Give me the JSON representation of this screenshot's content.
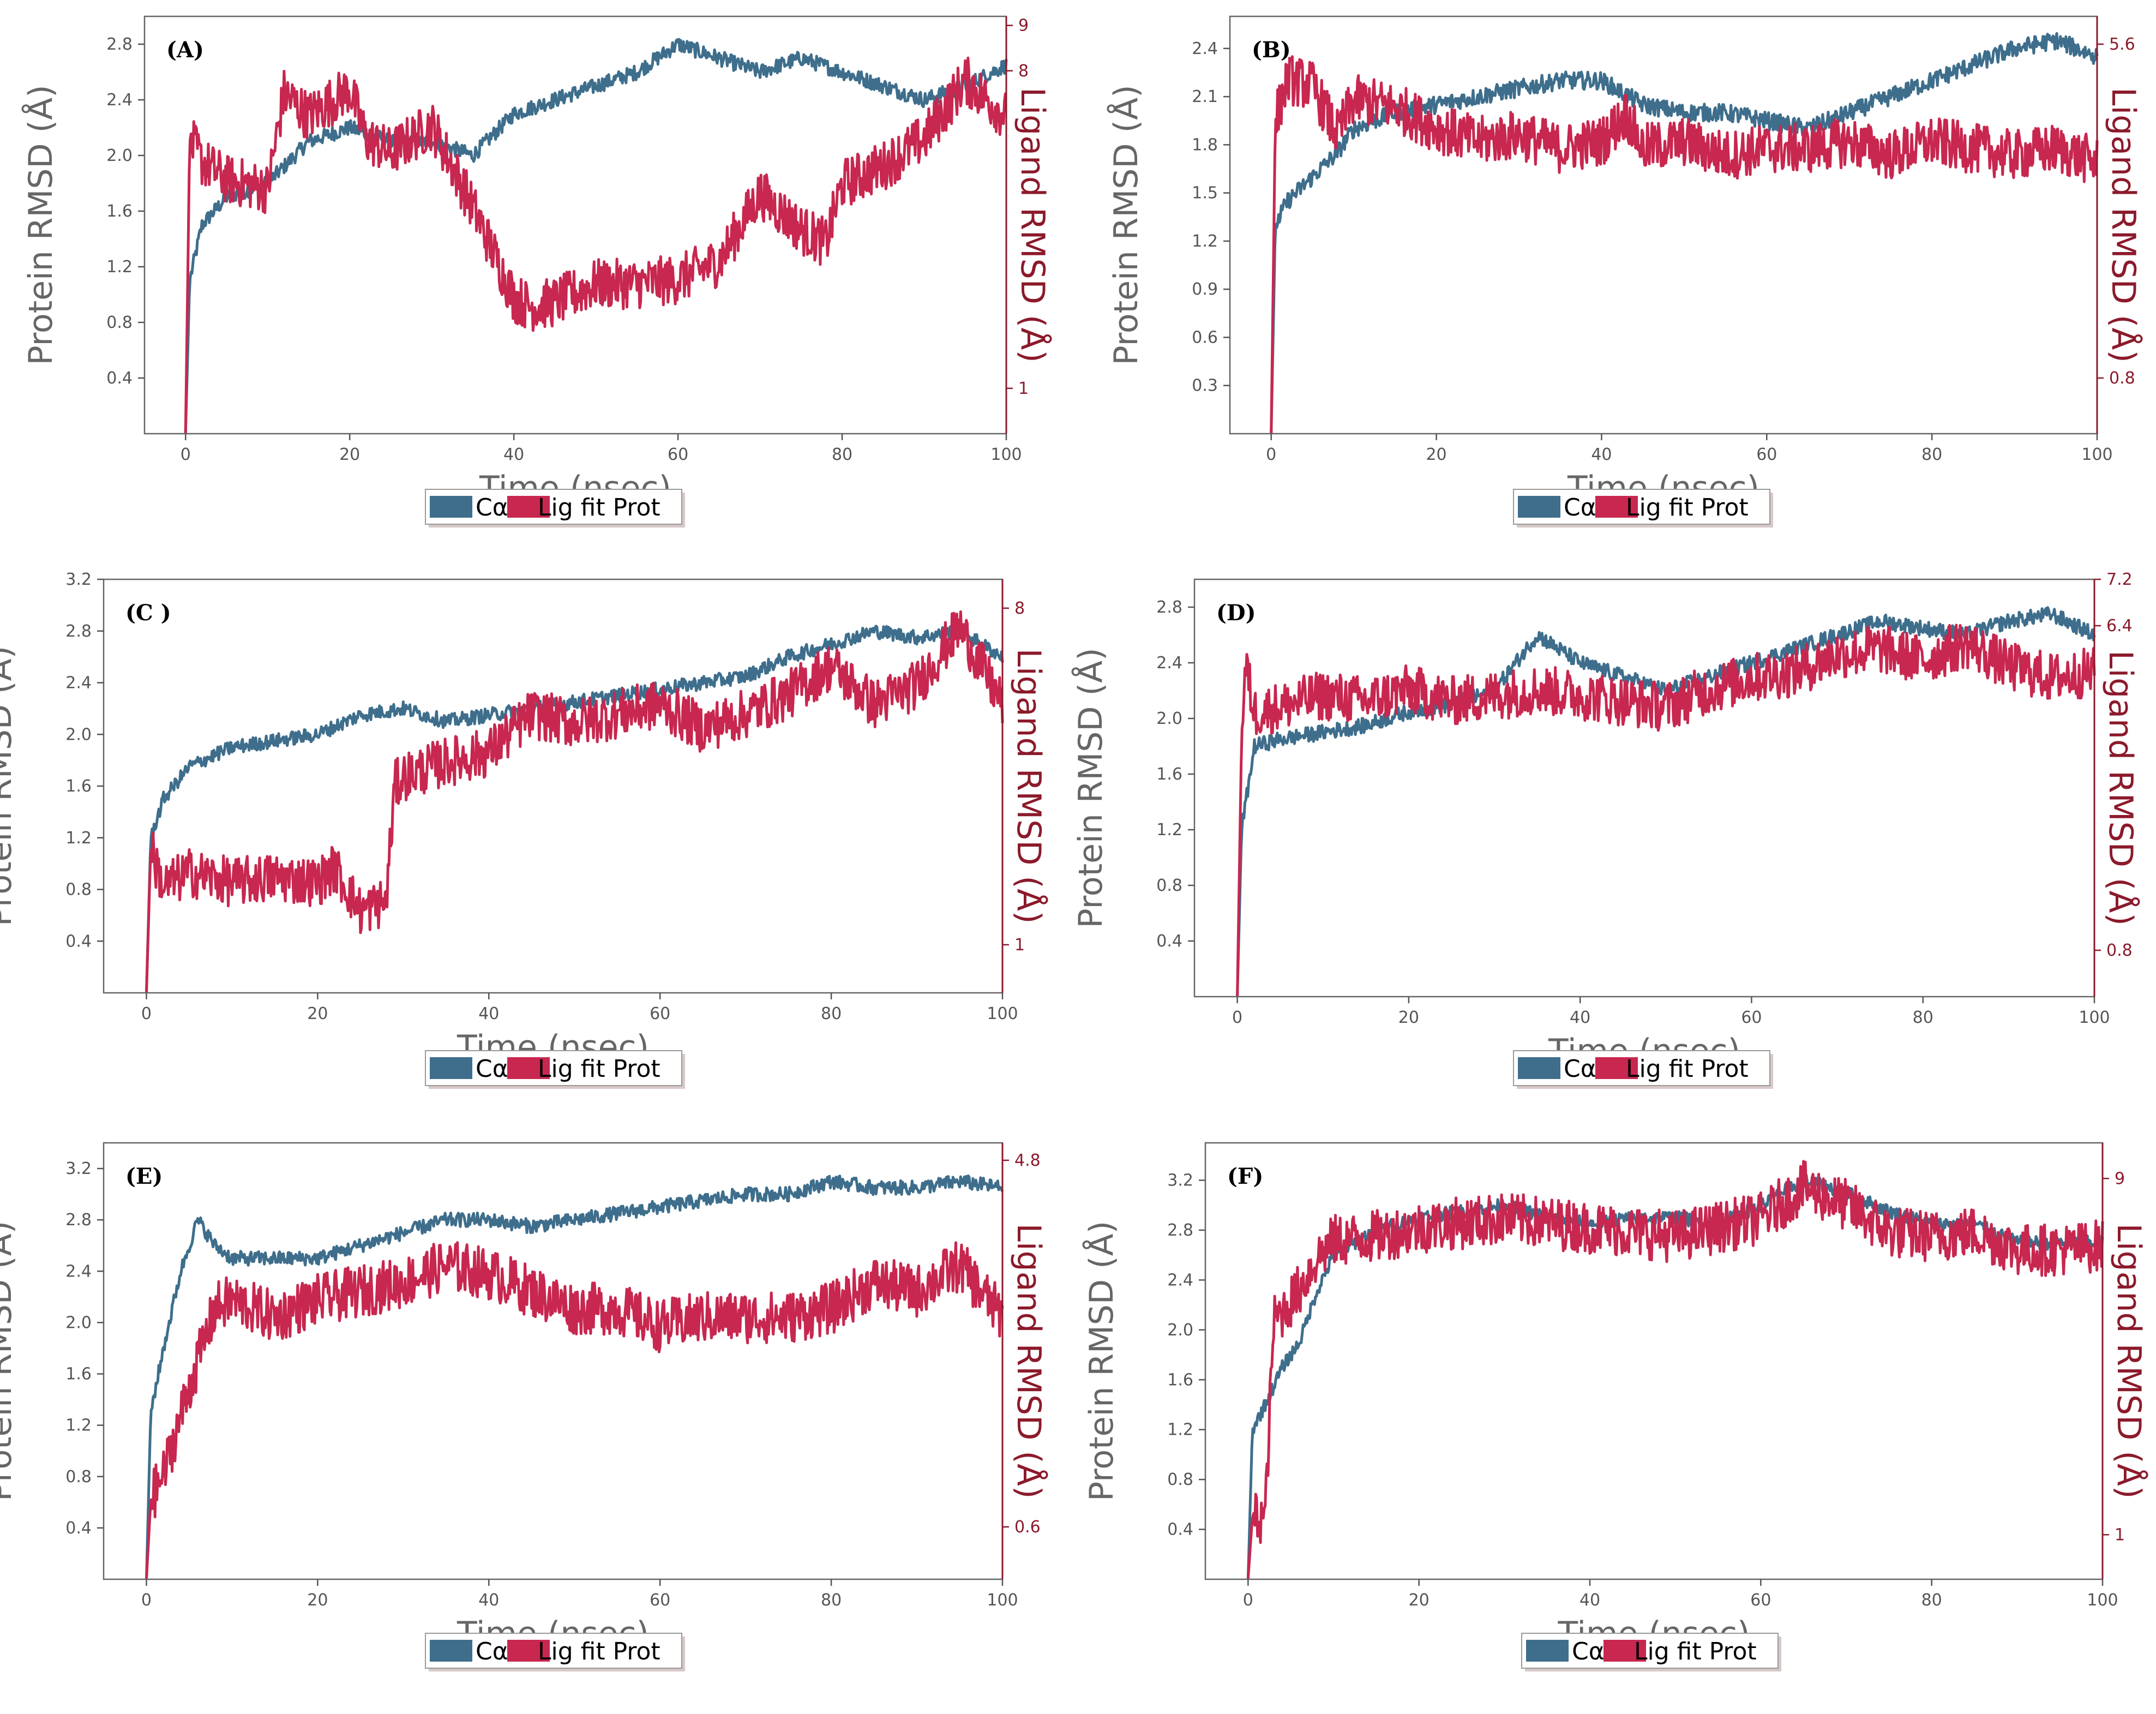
{
  "colors": {
    "protein": "#3e6e8c",
    "ligand": "#c8274f",
    "right_axis": "#8b1a2b",
    "axis": "#555555"
  },
  "chart_data": [
    {
      "type": "line",
      "panel": "(A)",
      "xlabel": "Time (nsec)",
      "ylabel": "Protein RMSD (Å)",
      "ylabel_right": "Ligand RMSD (Å)",
      "xlim": [
        -5,
        100
      ],
      "ylim": [
        0,
        3.0
      ],
      "ylim_right": [
        0,
        9.2
      ],
      "xticks": [
        0,
        20,
        40,
        60,
        80,
        100
      ],
      "yticks": [
        "0.4",
        "0.8",
        "1.2",
        "1.6",
        "2.0",
        "2.4",
        "2.8"
      ],
      "yticks_right": [
        "1",
        "8",
        "9"
      ],
      "legend": [
        "Cα",
        "Lig fit Prot"
      ],
      "series": [
        {
          "name": "Cα",
          "axis": "left",
          "x": [
            0,
            0.5,
            2,
            5,
            10,
            15,
            20,
            25,
            30,
            35,
            40,
            45,
            50,
            55,
            60,
            65,
            70,
            75,
            80,
            85,
            90,
            95,
            100
          ],
          "y": [
            0.0,
            1.1,
            1.5,
            1.7,
            1.8,
            2.1,
            2.2,
            2.1,
            2.1,
            2.0,
            2.3,
            2.4,
            2.5,
            2.6,
            2.8,
            2.7,
            2.6,
            2.7,
            2.6,
            2.5,
            2.4,
            2.5,
            2.65
          ]
        },
        {
          "name": "Lig fit Prot",
          "axis": "right",
          "x": [
            0,
            0.5,
            2,
            5,
            10,
            12,
            15,
            20,
            22,
            25,
            30,
            35,
            40,
            42,
            45,
            50,
            55,
            60,
            65,
            70,
            75,
            78,
            80,
            85,
            90,
            95,
            100
          ],
          "y": [
            0.0,
            6.5,
            6.0,
            5.6,
            5.4,
            7.5,
            7.0,
            7.6,
            6.5,
            6.2,
            6.8,
            5.0,
            3.0,
            2.8,
            2.9,
            3.3,
            3.3,
            3.4,
            3.8,
            5.3,
            4.5,
            4.2,
            5.5,
            5.9,
            6.5,
            7.8,
            7.0
          ]
        }
      ]
    },
    {
      "type": "line",
      "panel": "(B)",
      "xlabel": "Time (nsec)",
      "ylabel": "Protein RMSD (Å)",
      "ylabel_right": "Ligand RMSD (Å)",
      "xlim": [
        -5,
        100
      ],
      "ylim": [
        0,
        2.6
      ],
      "ylim_right": [
        0,
        6.0
      ],
      "xticks": [
        0,
        20,
        40,
        60,
        80,
        100
      ],
      "yticks": [
        "0.3",
        "0.6",
        "0.9",
        "1.2",
        "1.5",
        "1.8",
        "2.1",
        "2.4"
      ],
      "yticks_right": [
        "0.8",
        "5.6"
      ],
      "legend": [
        "Cα",
        "Lig fit Prot"
      ],
      "series": [
        {
          "name": "Cα",
          "axis": "left",
          "x": [
            0,
            0.5,
            2,
            5,
            8,
            10,
            15,
            20,
            25,
            30,
            35,
            40,
            45,
            50,
            55,
            60,
            65,
            70,
            75,
            80,
            85,
            90,
            95,
            100
          ],
          "y": [
            0.0,
            1.3,
            1.45,
            1.6,
            1.75,
            1.9,
            2.0,
            2.05,
            2.1,
            2.15,
            2.2,
            2.2,
            2.05,
            2.0,
            2.0,
            1.95,
            1.9,
            2.0,
            2.1,
            2.2,
            2.3,
            2.4,
            2.45,
            2.35
          ]
        },
        {
          "name": "Lig fit Prot",
          "axis": "right",
          "x": [
            0,
            0.5,
            2,
            5,
            8,
            10,
            15,
            20,
            25,
            30,
            35,
            40,
            43,
            45,
            50,
            55,
            60,
            65,
            70,
            75,
            80,
            85,
            90,
            95,
            100
          ],
          "y": [
            0.0,
            4.5,
            5.1,
            5.0,
            4.3,
            4.8,
            4.7,
            4.4,
            4.2,
            4.3,
            4.1,
            4.2,
            4.6,
            4.1,
            4.2,
            4.0,
            4.1,
            4.1,
            4.2,
            4.0,
            4.2,
            4.1,
            4.0,
            4.1,
            3.9
          ]
        }
      ]
    },
    {
      "type": "line",
      "panel": "(C )",
      "xlabel": "Time (nsec)",
      "ylabel": "Protein RMSD (Å)",
      "ylabel_right": "Ligand RMSD (Å)",
      "xlim": [
        -5,
        100
      ],
      "ylim": [
        0,
        3.2
      ],
      "ylim_right": [
        0,
        8.6
      ],
      "xticks": [
        0,
        20,
        40,
        60,
        80,
        100
      ],
      "yticks": [
        "0.4",
        "0.8",
        "1.2",
        "1.6",
        "2.0",
        "2.4",
        "2.8",
        "3.2"
      ],
      "yticks_right": [
        "1",
        "8"
      ],
      "legend": [
        "Cα",
        "Lig fit Prot"
      ],
      "series": [
        {
          "name": "Cα",
          "axis": "left",
          "x": [
            0,
            0.5,
            2,
            5,
            10,
            15,
            20,
            25,
            30,
            35,
            40,
            45,
            50,
            55,
            60,
            65,
            70,
            75,
            80,
            85,
            90,
            95,
            100
          ],
          "y": [
            0.0,
            1.2,
            1.5,
            1.75,
            1.9,
            1.95,
            2.0,
            2.15,
            2.2,
            2.1,
            2.15,
            2.2,
            2.25,
            2.3,
            2.35,
            2.4,
            2.45,
            2.6,
            2.7,
            2.8,
            2.75,
            2.8,
            2.6
          ]
        },
        {
          "name": "Lig fit Prot",
          "axis": "right",
          "x": [
            0,
            0.5,
            2,
            5,
            10,
            15,
            20,
            22,
            25,
            28,
            29,
            30,
            35,
            40,
            45,
            50,
            55,
            60,
            65,
            70,
            75,
            80,
            85,
            90,
            95,
            100
          ],
          "y": [
            0.0,
            3.0,
            2.2,
            2.5,
            2.3,
            2.4,
            2.3,
            2.6,
            1.7,
            1.9,
            4.3,
            4.5,
            4.8,
            5.0,
            5.8,
            5.6,
            5.8,
            6.0,
            5.5,
            5.8,
            6.2,
            6.8,
            6.0,
            6.4,
            7.6,
            6.0
          ]
        }
      ]
    },
    {
      "type": "line",
      "panel": "(D)",
      "xlabel": "Time (nsec)",
      "ylabel": "Protein RMSD (Å)",
      "ylabel_right": "Ligand RMSD (Å)",
      "xlim": [
        -5,
        100
      ],
      "ylim": [
        0,
        3.0
      ],
      "ylim_right": [
        0,
        7.2
      ],
      "xticks": [
        0,
        20,
        40,
        60,
        80,
        100
      ],
      "yticks": [
        "0.4",
        "0.8",
        "1.2",
        "1.6",
        "2.0",
        "2.4",
        "2.8"
      ],
      "yticks_right": [
        "0.8",
        "6.4",
        "7.2"
      ],
      "legend": [
        "Cα",
        "Lig fit Prot"
      ],
      "series": [
        {
          "name": "Cα",
          "axis": "left",
          "x": [
            0,
            0.5,
            2,
            5,
            10,
            15,
            20,
            25,
            30,
            35,
            40,
            45,
            50,
            55,
            60,
            65,
            70,
            75,
            80,
            85,
            90,
            95,
            100
          ],
          "y": [
            0.0,
            1.2,
            1.8,
            1.85,
            1.9,
            1.95,
            2.05,
            2.1,
            2.2,
            2.6,
            2.4,
            2.3,
            2.2,
            2.3,
            2.4,
            2.5,
            2.6,
            2.7,
            2.65,
            2.6,
            2.7,
            2.75,
            2.6
          ]
        },
        {
          "name": "Lig fit Prot",
          "axis": "right",
          "x": [
            0,
            0.5,
            1,
            2,
            5,
            10,
            15,
            20,
            25,
            30,
            35,
            40,
            45,
            50,
            55,
            60,
            65,
            70,
            75,
            80,
            85,
            90,
            95,
            100
          ],
          "y": [
            0.0,
            4.5,
            5.7,
            4.9,
            5.0,
            5.2,
            5.1,
            5.3,
            5.1,
            5.2,
            5.3,
            5.2,
            5.1,
            5.0,
            5.3,
            5.5,
            5.6,
            5.9,
            6.0,
            5.8,
            6.1,
            5.7,
            5.5,
            5.6
          ]
        }
      ]
    },
    {
      "type": "line",
      "panel": "(E)",
      "xlabel": "Time (nsec)",
      "ylabel": "Protein RMSD (Å)",
      "ylabel_right": "Ligand RMSD (Å)",
      "xlim": [
        -5,
        100
      ],
      "ylim": [
        0,
        3.4
      ],
      "ylim_right": [
        0,
        5.0
      ],
      "xticks": [
        0,
        20,
        40,
        60,
        80,
        100
      ],
      "yticks": [
        "0.4",
        "0.8",
        "1.2",
        "1.6",
        "2.0",
        "2.4",
        "2.8",
        "3.2"
      ],
      "yticks_right": [
        "0.6",
        "4.8"
      ],
      "legend": [
        "Cα",
        "Lig fit Prot"
      ],
      "series": [
        {
          "name": "Cα",
          "axis": "left",
          "x": [
            0,
            0.5,
            2,
            4,
            6,
            8,
            10,
            15,
            20,
            25,
            30,
            35,
            40,
            45,
            50,
            55,
            60,
            65,
            70,
            75,
            80,
            85,
            90,
            95,
            100
          ],
          "y": [
            0.0,
            1.3,
            1.8,
            2.4,
            2.8,
            2.6,
            2.5,
            2.5,
            2.5,
            2.6,
            2.7,
            2.8,
            2.8,
            2.75,
            2.8,
            2.85,
            2.9,
            2.95,
            3.0,
            3.0,
            3.1,
            3.05,
            3.05,
            3.1,
            3.05
          ]
        },
        {
          "name": "Lig fit Prot",
          "axis": "right",
          "x": [
            0,
            0.5,
            2,
            5,
            8,
            10,
            15,
            20,
            25,
            30,
            35,
            40,
            45,
            50,
            55,
            60,
            65,
            70,
            75,
            80,
            85,
            90,
            95,
            100
          ],
          "y": [
            0.0,
            0.9,
            1.2,
            2.2,
            3.1,
            3.2,
            3.0,
            3.2,
            3.3,
            3.4,
            3.6,
            3.5,
            3.3,
            3.1,
            3.1,
            2.9,
            3.0,
            3.0,
            3.0,
            3.1,
            3.4,
            3.3,
            3.6,
            3.0
          ]
        }
      ]
    },
    {
      "type": "line",
      "panel": "(F)",
      "xlabel": "Time (nsec)",
      "ylabel": "Protein RMSD (Å)",
      "ylabel_right": "Ligand RMSD (Å)",
      "xlim": [
        -5,
        100
      ],
      "ylim": [
        0,
        3.5
      ],
      "ylim_right": [
        0,
        9.8
      ],
      "xticks": [
        0,
        20,
        40,
        60,
        80,
        100
      ],
      "yticks": [
        "0.4",
        "0.8",
        "1.2",
        "1.6",
        "2.0",
        "2.4",
        "2.8",
        "3.2"
      ],
      "yticks_right": [
        "1",
        "9"
      ],
      "legend": [
        "Cα",
        "Lig fit Prot"
      ],
      "series": [
        {
          "name": "Cα",
          "axis": "left",
          "x": [
            0,
            0.5,
            2,
            4,
            6,
            8,
            10,
            15,
            20,
            25,
            30,
            35,
            40,
            45,
            50,
            55,
            60,
            65,
            70,
            75,
            80,
            85,
            90,
            95,
            100
          ],
          "y": [
            0.0,
            1.2,
            1.4,
            1.7,
            1.9,
            2.3,
            2.6,
            2.8,
            2.9,
            2.95,
            3.0,
            2.9,
            2.85,
            2.9,
            2.9,
            2.85,
            3.0,
            3.2,
            3.1,
            2.95,
            2.85,
            2.85,
            2.7,
            2.7,
            2.7
          ]
        },
        {
          "name": "Lig fit Prot",
          "axis": "right",
          "x": [
            0,
            0.5,
            2,
            3,
            4,
            6,
            8,
            10,
            15,
            20,
            25,
            30,
            35,
            40,
            45,
            50,
            55,
            60,
            65,
            70,
            75,
            80,
            85,
            90,
            95,
            100
          ],
          "y": [
            0.0,
            1.4,
            1.4,
            5.8,
            6.0,
            6.5,
            7.2,
            7.6,
            7.7,
            7.9,
            8.0,
            8.1,
            8.0,
            7.9,
            7.8,
            7.7,
            7.9,
            8.1,
            8.8,
            8.4,
            7.8,
            7.7,
            7.8,
            7.4,
            7.4,
            7.5
          ]
        }
      ]
    }
  ]
}
